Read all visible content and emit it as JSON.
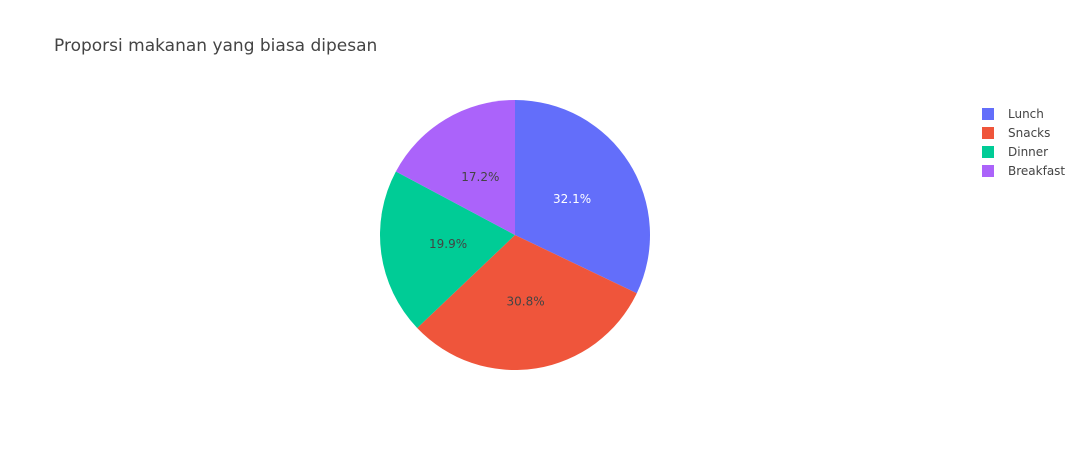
{
  "chart_data": {
    "type": "pie",
    "title": "Proporsi makanan yang biasa dipesan",
    "categories": [
      "Lunch",
      "Snacks",
      "Dinner",
      "Breakfast"
    ],
    "values": [
      32.1,
      30.8,
      19.9,
      17.2
    ],
    "value_labels": [
      "32.1%",
      "30.8%",
      "19.9%",
      "17.2%"
    ],
    "colors": [
      "#636efa",
      "#ef553b",
      "#00cc96",
      "#ab63fa"
    ],
    "label_colors": [
      "#ffffff",
      "#444444",
      "#444444",
      "#444444"
    ],
    "direction": "clockwise",
    "start": "top",
    "legend_position": "top-right"
  }
}
